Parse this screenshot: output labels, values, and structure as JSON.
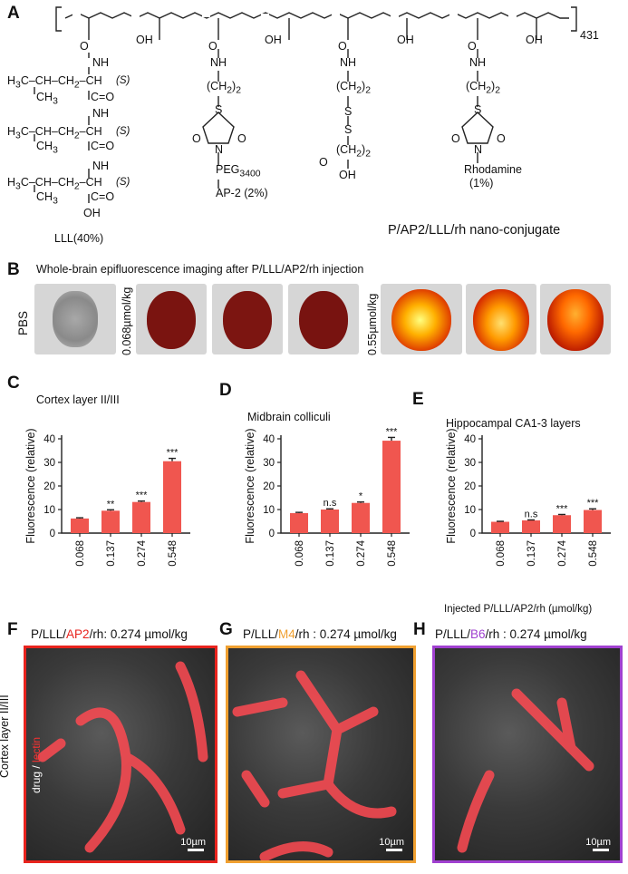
{
  "panels": {
    "A": "A",
    "B": "B",
    "C": "C",
    "D": "D",
    "E": "E",
    "F": "F",
    "G": "G",
    "H": "H"
  },
  "panel_a": {
    "repeat_count": "431",
    "lll_percent": "LLL(40%)",
    "conjugate_name": "P/AP2/LLL/rh nano-conjugate",
    "peg": "PEG",
    "peg_sub": "3400",
    "ap2": "AP-2 (2%)",
    "rhodamine": "Rhodamine",
    "rhodamine_pct": "(1%)",
    "s_label": "(S)",
    "oh": "OH",
    "nh": "NH",
    "ch2": "(CH",
    "ch2_sub": "2",
    "ch2_close": ")",
    "s_atom": "S",
    "n_atom": "N",
    "o_atom": "O",
    "o_carbonyl": "O",
    "c_o": "C=O",
    "h3c_ch_ch2_ch": "H",
    "h3c_tail": "C–CH–CH",
    "h3c_tail2": "–CH",
    "ch3": "CH",
    "ch3_sub": "3"
  },
  "panel_b": {
    "title": "Whole-brain epifluorescence imaging after P/LLL/AP2/rh injection",
    "pbs": "PBS",
    "dose_low": "0.068µmol/kg",
    "dose_high": "0.55µmol/kg"
  },
  "chart_data": [
    {
      "type": "bar",
      "title": "Cortex layer II/III",
      "ylabel": "Fluorescence (relative)",
      "categories": [
        "0.068",
        "0.137",
        "0.274",
        "0.548"
      ],
      "values": [
        6.2,
        9.5,
        13.2,
        30.5
      ],
      "errors": [
        0.3,
        0.4,
        0.4,
        1.2
      ],
      "significance": [
        "",
        "**",
        "***",
        "***"
      ],
      "ylim": [
        0,
        40
      ],
      "yticks": [
        "0",
        "10",
        "20",
        "30",
        "40"
      ]
    },
    {
      "type": "bar",
      "title": "Midbrain colliculi",
      "ylabel": "Fluorescence (relative)",
      "categories": [
        "0.068",
        "0.137",
        "0.274",
        "0.548"
      ],
      "values": [
        8.5,
        10.0,
        12.8,
        39.2
      ],
      "errors": [
        0.3,
        0.3,
        0.4,
        1.4
      ],
      "significance": [
        "",
        "n.s",
        "*",
        "***"
      ],
      "ylim": [
        0,
        40
      ],
      "yticks": [
        "0",
        "10",
        "20",
        "30",
        "40"
      ]
    },
    {
      "type": "bar",
      "title": "Hippocampal CA1-3 layers",
      "ylabel": "Fluorescence (relative)",
      "xlabel": "Injected P/LLL/AP2/rh (µmol/kg)",
      "categories": [
        "0.068",
        "0.137",
        "0.274",
        "0.548"
      ],
      "values": [
        4.8,
        5.4,
        7.6,
        9.8
      ],
      "errors": [
        0.2,
        0.2,
        0.3,
        0.5
      ],
      "significance": [
        "",
        "n.s",
        "***",
        "***"
      ],
      "ylim": [
        0,
        40
      ],
      "yticks": [
        "0",
        "10",
        "20",
        "30",
        "40"
      ]
    }
  ],
  "micro": {
    "f": {
      "pre": "P/LLL/",
      "mid": "AP2",
      "post": "/rh: 0.274 µmol/kg",
      "color": "#e8231d",
      "border": "#e8231d"
    },
    "g": {
      "pre": "P/LLL/",
      "mid": "M4",
      "post": "/rh : 0.274 µmol/kg",
      "color": "#f0a030",
      "border": "#f0a030"
    },
    "h": {
      "pre": "P/LLL/",
      "mid": "B6",
      "post": "/rh : 0.274 µmol/kg",
      "color": "#a040d0",
      "border": "#a040d0"
    },
    "row_label": "Cortex layer II/III",
    "stain_drug": "drug / ",
    "stain_lectin": "lectin",
    "scale": "10µm"
  }
}
